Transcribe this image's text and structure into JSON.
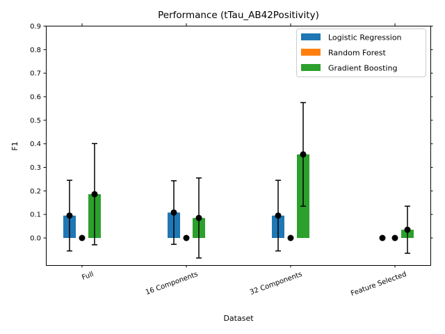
{
  "chart_data": {
    "type": "bar",
    "title": "Performance (tTau_AB42Positivity)",
    "xlabel": "Dataset",
    "ylabel": "F1",
    "ylim": [
      -0.12,
      0.9
    ],
    "yticks": [
      "0.0",
      "0.1",
      "0.2",
      "0.3",
      "0.4",
      "0.5",
      "0.6",
      "0.7",
      "0.8",
      "0.9"
    ],
    "categories": [
      "Full",
      "16 Components",
      "32 Components",
      "Feature Selected"
    ],
    "legend_position": "top-right",
    "grid": false,
    "series": [
      {
        "name": "Logistic Regression",
        "color": "#1f77b4",
        "values": [
          0.095,
          0.108,
          0.095,
          0.0
        ],
        "error": [
          0.15,
          0.135,
          0.15,
          0.0
        ]
      },
      {
        "name": "Random Forest",
        "color": "#ff7f0e",
        "values": [
          0.0,
          0.0,
          0.0,
          0.0
        ],
        "error": [
          0.0,
          0.0,
          0.0,
          0.0
        ]
      },
      {
        "name": "Gradient Boosting",
        "color": "#2ca02c",
        "values": [
          0.186,
          0.085,
          0.355,
          0.035
        ],
        "error": [
          0.215,
          0.17,
          0.22,
          0.1
        ]
      }
    ]
  }
}
